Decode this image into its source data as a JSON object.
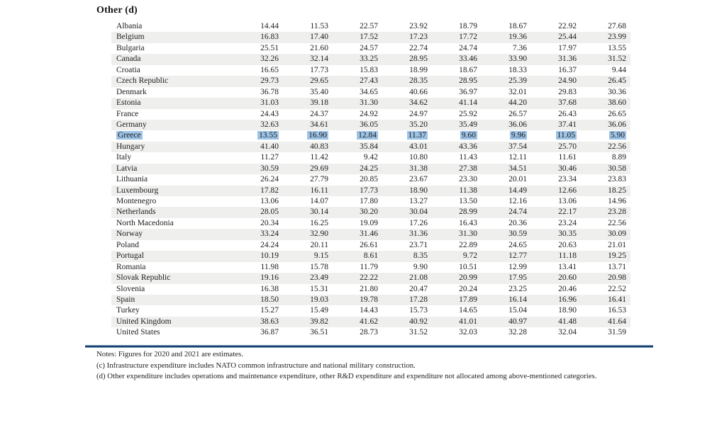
{
  "title": "Other (d)",
  "table": {
    "highlighted_country": "Greece",
    "rows": [
      {
        "country": "Albania",
        "values": [
          "14.44",
          "11.53",
          "22.57",
          "23.92",
          "18.79",
          "18.67",
          "22.92",
          "27.68"
        ]
      },
      {
        "country": "Belgium",
        "values": [
          "16.83",
          "17.40",
          "17.52",
          "17.23",
          "17.72",
          "19.36",
          "25.44",
          "23.99"
        ]
      },
      {
        "country": "Bulgaria",
        "values": [
          "25.51",
          "21.60",
          "24.57",
          "22.74",
          "24.74",
          "7.36",
          "17.97",
          "13.55"
        ]
      },
      {
        "country": "Canada",
        "values": [
          "32.26",
          "32.14",
          "33.25",
          "28.95",
          "33.46",
          "33.90",
          "31.36",
          "31.52"
        ]
      },
      {
        "country": "Croatia",
        "values": [
          "16.65",
          "17.73",
          "15.83",
          "18.99",
          "18.67",
          "18.33",
          "16.37",
          "9.44"
        ]
      },
      {
        "country": "Czech Republic",
        "values": [
          "29.73",
          "29.65",
          "27.43",
          "28.35",
          "28.95",
          "25.39",
          "24.90",
          "26.45"
        ]
      },
      {
        "country": "Denmark",
        "values": [
          "36.78",
          "35.40",
          "34.65",
          "40.66",
          "36.97",
          "32.01",
          "29.83",
          "30.36"
        ]
      },
      {
        "country": "Estonia",
        "values": [
          "31.03",
          "39.18",
          "31.30",
          "34.62",
          "41.14",
          "44.20",
          "37.68",
          "38.60"
        ]
      },
      {
        "country": "France",
        "values": [
          "24.43",
          "24.37",
          "24.92",
          "24.97",
          "25.92",
          "26.57",
          "26.43",
          "26.65"
        ]
      },
      {
        "country": "Germany",
        "values": [
          "32.63",
          "34.61",
          "36.05",
          "35.20",
          "35.49",
          "36.06",
          "37.41",
          "36.06"
        ]
      },
      {
        "country": "Greece",
        "values": [
          "13.55",
          "16.90",
          "12.84",
          "11.37",
          "9.60",
          "9.96",
          "11.05",
          "5.90"
        ]
      },
      {
        "country": "Hungary",
        "values": [
          "41.40",
          "40.83",
          "35.84",
          "43.01",
          "43.36",
          "37.54",
          "25.70",
          "22.56"
        ]
      },
      {
        "country": "Italy",
        "values": [
          "11.27",
          "11.42",
          "9.42",
          "10.80",
          "11.43",
          "12.11",
          "11.61",
          "8.89"
        ]
      },
      {
        "country": "Latvia",
        "values": [
          "30.59",
          "29.69",
          "24.25",
          "31.38",
          "27.38",
          "34.51",
          "30.46",
          "30.58"
        ]
      },
      {
        "country": "Lithuania",
        "values": [
          "26.24",
          "27.79",
          "20.85",
          "23.67",
          "23.30",
          "20.01",
          "23.34",
          "23.83"
        ]
      },
      {
        "country": "Luxembourg",
        "values": [
          "17.82",
          "16.11",
          "17.73",
          "18.90",
          "11.38",
          "14.49",
          "12.66",
          "18.25"
        ]
      },
      {
        "country": "Montenegro",
        "values": [
          "13.06",
          "14.07",
          "17.80",
          "13.27",
          "13.50",
          "12.16",
          "13.06",
          "14.96"
        ]
      },
      {
        "country": "Netherlands",
        "values": [
          "28.05",
          "30.14",
          "30.20",
          "30.04",
          "28.99",
          "24.74",
          "22.17",
          "23.28"
        ]
      },
      {
        "country": "North Macedonia",
        "values": [
          "20.34",
          "16.25",
          "19.09",
          "17.26",
          "16.43",
          "20.36",
          "23.24",
          "22.56"
        ]
      },
      {
        "country": "Norway",
        "values": [
          "33.24",
          "32.90",
          "31.46",
          "31.36",
          "31.30",
          "30.59",
          "30.35",
          "30.09"
        ]
      },
      {
        "country": "Poland",
        "values": [
          "24.24",
          "20.11",
          "26.61",
          "23.71",
          "22.89",
          "24.65",
          "20.63",
          "21.01"
        ]
      },
      {
        "country": "Portugal",
        "values": [
          "10.19",
          "9.15",
          "8.61",
          "8.35",
          "9.72",
          "12.77",
          "11.18",
          "19.25"
        ]
      },
      {
        "country": "Romania",
        "values": [
          "11.98",
          "15.78",
          "11.79",
          "9.90",
          "10.51",
          "12.99",
          "13.41",
          "13.71"
        ]
      },
      {
        "country": "Slovak Republic",
        "values": [
          "19.16",
          "23.49",
          "22.22",
          "21.08",
          "20.99",
          "17.95",
          "20.60",
          "20.98"
        ]
      },
      {
        "country": "Slovenia",
        "values": [
          "16.38",
          "15.31",
          "21.80",
          "20.47",
          "20.24",
          "23.25",
          "20.46",
          "22.52"
        ]
      },
      {
        "country": "Spain",
        "values": [
          "18.50",
          "19.03",
          "19.78",
          "17.28",
          "17.89",
          "16.14",
          "16.96",
          "16.41"
        ]
      },
      {
        "country": "Turkey",
        "values": [
          "15.27",
          "15.49",
          "14.43",
          "15.73",
          "14.65",
          "15.04",
          "18.90",
          "16.53"
        ]
      },
      {
        "country": "United Kingdom",
        "values": [
          "38.63",
          "39.82",
          "41.62",
          "40.92",
          "41.01",
          "40.97",
          "41.48",
          "41.64"
        ]
      },
      {
        "country": "United States",
        "values": [
          "36.87",
          "36.51",
          "28.73",
          "31.52",
          "32.03",
          "32.28",
          "32.04",
          "31.59"
        ]
      }
    ]
  },
  "notes": [
    "Notes: Figures for 2020 and 2021 are estimates.",
    "(c) Infrastructure expenditure includes NATO common infrastructure and national military construction.",
    "(d) Other expenditure includes operations and maintenance expenditure, other R&D expenditure and expenditure not allocated among above-mentioned categories."
  ],
  "colors": {
    "highlight": "#9dc3e6",
    "stripe": "#efefee",
    "rule_dark": "#1e3f66",
    "rule_light": "#7097c2"
  }
}
